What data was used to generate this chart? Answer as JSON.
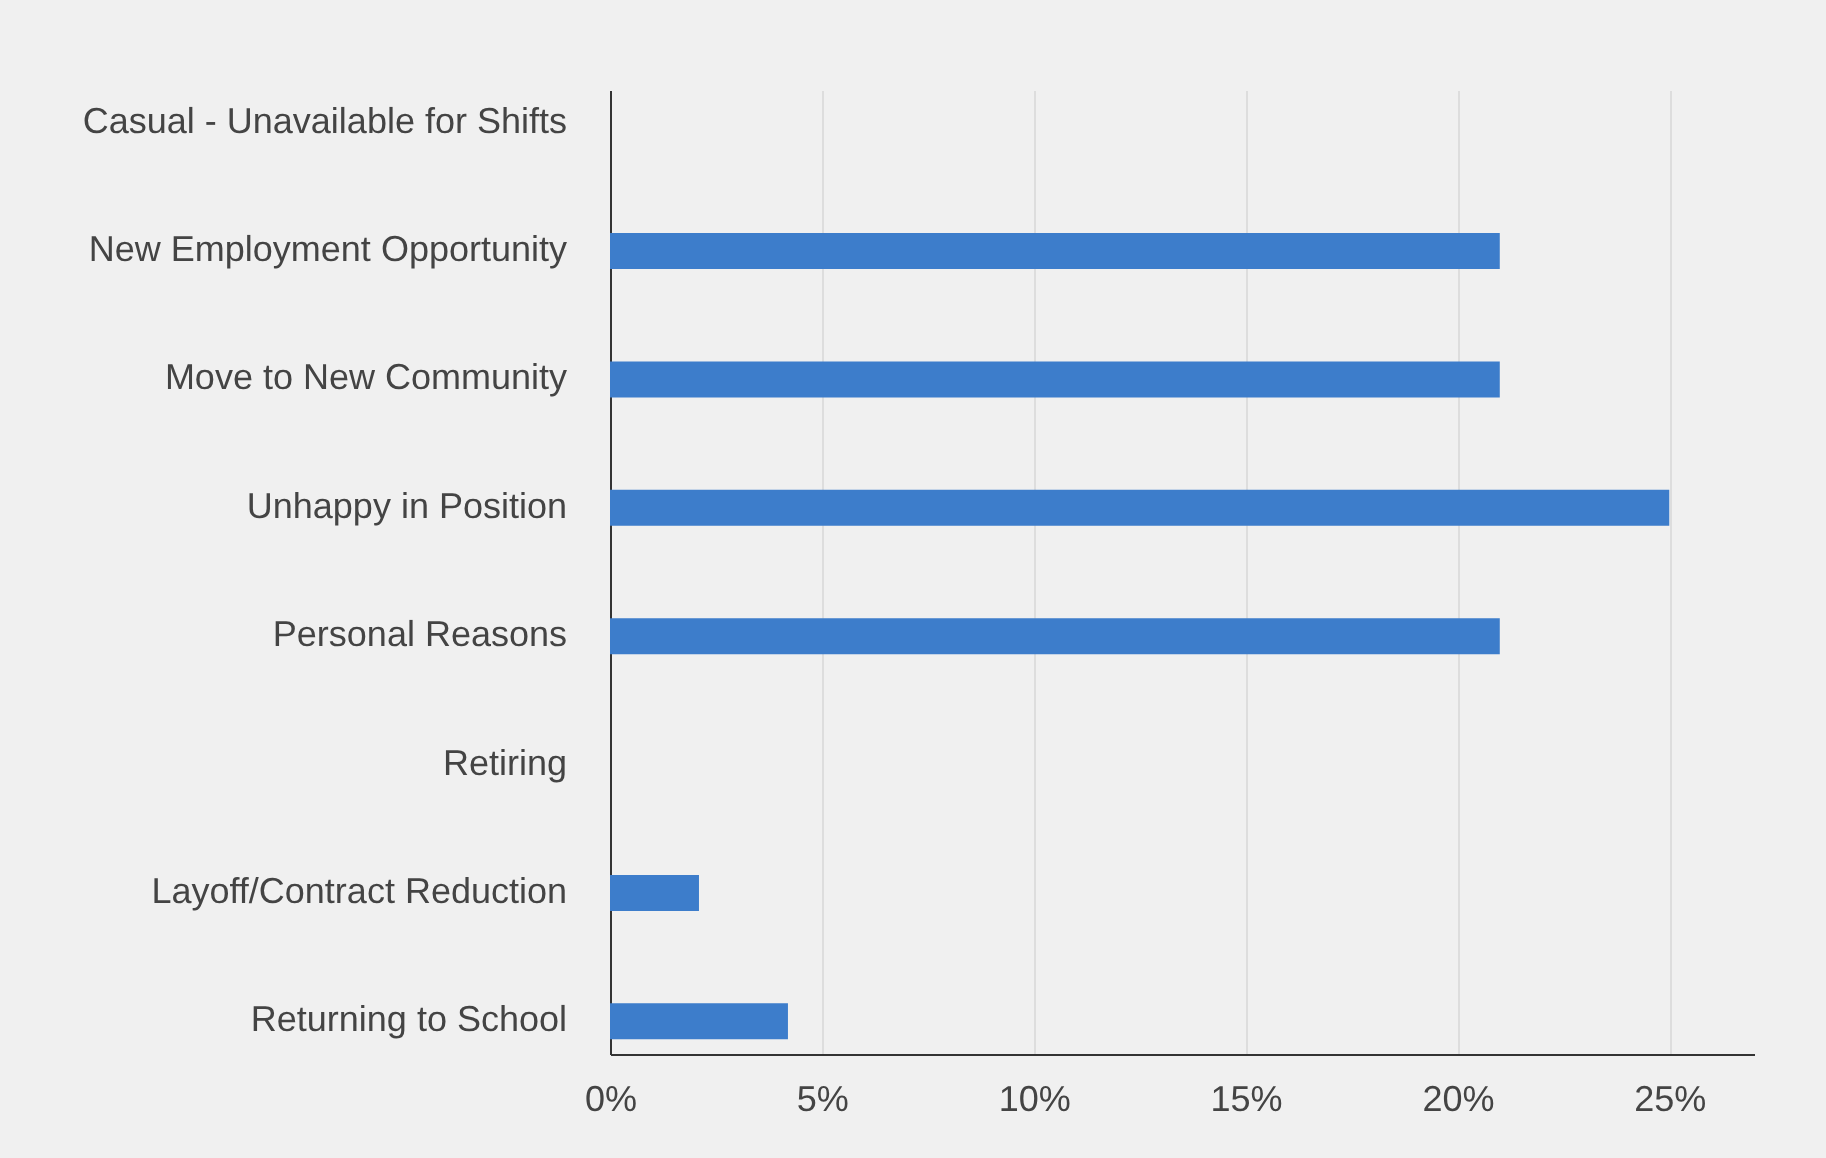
{
  "chart_data": {
    "type": "bar",
    "orientation": "horizontal",
    "categories": [
      "Casual - Unavailable for Shifts",
      "New Employment Opportunity",
      "Move to New Community",
      "Unhappy in Position",
      "Personal Reasons",
      "Retiring",
      "Layoff/Contract Reduction",
      "Returning to School"
    ],
    "values": [
      0,
      21,
      21,
      25,
      21,
      0,
      2.1,
      4.2
    ],
    "color": "#3d7dcb",
    "xlim": [
      0,
      27
    ],
    "xticks": [
      {
        "value": 0,
        "label": "0%"
      },
      {
        "value": 5,
        "label": "5%"
      },
      {
        "value": 10,
        "label": "10%"
      },
      {
        "value": 15,
        "label": "15%"
      },
      {
        "value": 20,
        "label": "20%"
      },
      {
        "value": 25,
        "label": "25%"
      }
    ],
    "grid": "x"
  }
}
